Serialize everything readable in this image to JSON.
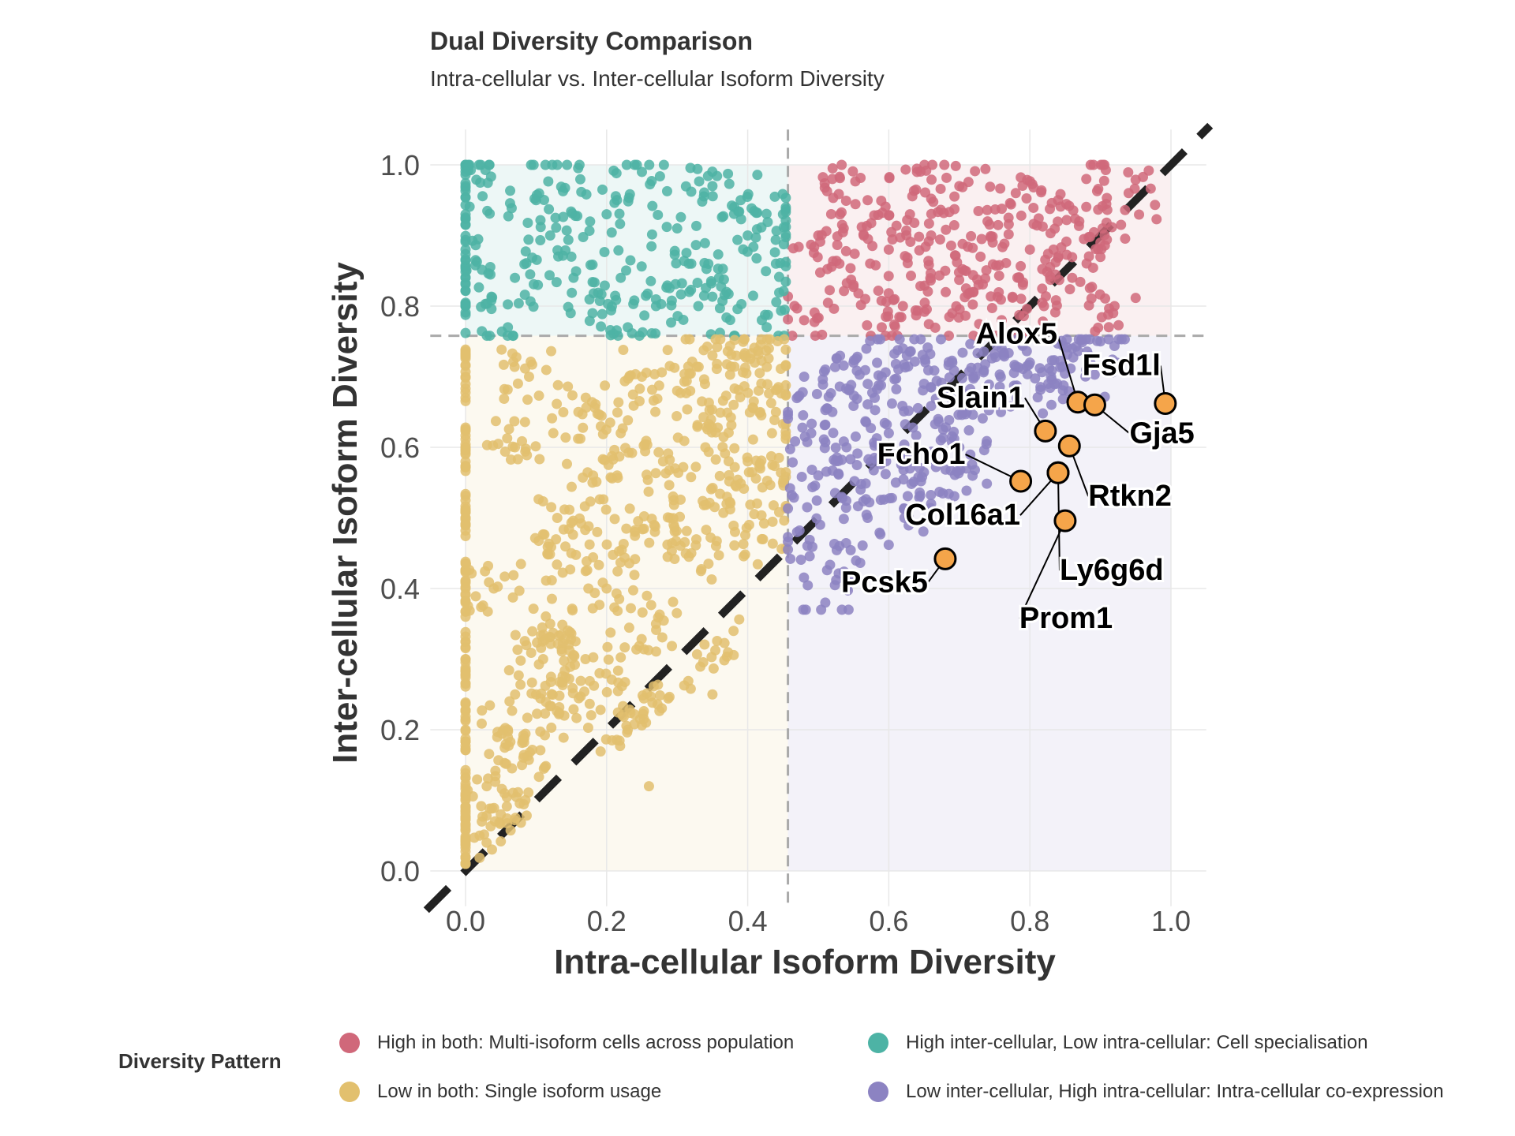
{
  "chart_data": {
    "type": "scatter",
    "title": "Dual Diversity Comparison",
    "subtitle": "Intra-cellular vs. Inter-cellular Isoform Diversity",
    "xlabel": "Intra-cellular Isoform Diversity",
    "ylabel": "Inter-cellular Isoform Diversity",
    "xlim": [
      -0.05,
      1.05
    ],
    "ylim": [
      -0.05,
      1.05
    ],
    "x_ticks": [
      "0.0",
      "0.2",
      "0.4",
      "0.6",
      "0.8",
      "1.0"
    ],
    "y_ticks": [
      "0.0",
      "0.2",
      "0.4",
      "0.6",
      "0.8",
      "1.0"
    ],
    "grid": true,
    "thresholds": {
      "x": 0.457,
      "y": 0.758
    },
    "diagonal_reference": "y = x",
    "legend_title": "Diversity Pattern",
    "legend_position": "bottom",
    "series": [
      {
        "name": "High in both: Multi-isoform cells across population",
        "color": "#D0687A",
        "points": [
          [
            0.48,
            0.78
          ],
          [
            0.5,
            0.9
          ],
          [
            0.52,
            0.98
          ],
          [
            0.55,
            0.83
          ],
          [
            0.57,
            0.95
          ],
          [
            0.6,
            0.88
          ],
          [
            0.62,
            0.8
          ],
          [
            0.64,
            0.99
          ],
          [
            0.66,
            0.9
          ],
          [
            0.68,
            0.85
          ],
          [
            0.7,
            0.97
          ],
          [
            0.72,
            0.82
          ],
          [
            0.74,
            0.92
          ],
          [
            0.76,
            0.78
          ],
          [
            0.78,
            0.96
          ],
          [
            0.8,
            0.88
          ],
          [
            0.82,
            0.8
          ],
          [
            0.84,
            0.95
          ],
          [
            0.86,
            0.84
          ],
          [
            0.88,
            0.98
          ],
          [
            0.9,
            0.89
          ],
          [
            0.92,
            0.8
          ],
          [
            0.94,
            0.96
          ],
          [
            0.59,
            0.77
          ],
          [
            0.69,
            0.79
          ],
          [
            0.79,
            0.83
          ],
          [
            0.87,
            0.92
          ],
          [
            0.53,
            0.86
          ],
          [
            0.63,
            0.93
          ],
          [
            0.73,
            0.87
          ]
        ]
      },
      {
        "name": "High inter-cellular, Low intra-cellular: Cell specialisation",
        "color": "#4DB3A5",
        "points": [
          [
            0.0,
            1.0
          ],
          [
            0.0,
            0.97
          ],
          [
            0.0,
            0.93
          ],
          [
            0.0,
            0.88
          ],
          [
            0.0,
            0.84
          ],
          [
            0.0,
            0.8
          ],
          [
            0.07,
            0.84
          ],
          [
            0.1,
            0.95
          ],
          [
            0.13,
            1.0
          ],
          [
            0.15,
            0.87
          ],
          [
            0.18,
            0.79
          ],
          [
            0.2,
            0.93
          ],
          [
            0.22,
            0.84
          ],
          [
            0.25,
            0.99
          ],
          [
            0.27,
            0.8
          ],
          [
            0.3,
            0.91
          ],
          [
            0.32,
            0.86
          ],
          [
            0.35,
            0.97
          ],
          [
            0.37,
            0.82
          ],
          [
            0.4,
            0.9
          ],
          [
            0.42,
            0.78
          ],
          [
            0.44,
            0.86
          ],
          [
            0.45,
            0.93
          ],
          [
            0.06,
            0.77
          ],
          [
            0.23,
            0.77
          ],
          [
            0.33,
            0.8
          ],
          [
            0.39,
            0.95
          ],
          [
            0.12,
            0.9
          ]
        ]
      },
      {
        "name": "Low in both: Single isoform usage",
        "color": "#E2C06E",
        "points": [
          [
            0.0,
            0.02
          ],
          [
            0.0,
            0.1
          ],
          [
            0.0,
            0.2
          ],
          [
            0.0,
            0.3
          ],
          [
            0.0,
            0.4
          ],
          [
            0.0,
            0.5
          ],
          [
            0.0,
            0.6
          ],
          [
            0.0,
            0.7
          ],
          [
            0.02,
            0.05
          ],
          [
            0.03,
            0.12
          ],
          [
            0.05,
            0.08
          ],
          [
            0.06,
            0.2
          ],
          [
            0.08,
            0.15
          ],
          [
            0.1,
            0.25
          ],
          [
            0.12,
            0.35
          ],
          [
            0.14,
            0.22
          ],
          [
            0.15,
            0.45
          ],
          [
            0.17,
            0.3
          ],
          [
            0.18,
            0.55
          ],
          [
            0.2,
            0.4
          ],
          [
            0.22,
            0.62
          ],
          [
            0.24,
            0.48
          ],
          [
            0.25,
            0.7
          ],
          [
            0.27,
            0.35
          ],
          [
            0.28,
            0.58
          ],
          [
            0.3,
            0.68
          ],
          [
            0.32,
            0.45
          ],
          [
            0.34,
            0.6
          ],
          [
            0.35,
            0.73
          ],
          [
            0.37,
            0.52
          ],
          [
            0.38,
            0.66
          ],
          [
            0.4,
            0.58
          ],
          [
            0.41,
            0.72
          ],
          [
            0.42,
            0.47
          ],
          [
            0.44,
            0.65
          ],
          [
            0.45,
            0.55
          ],
          [
            0.04,
            0.4
          ],
          [
            0.07,
            0.6
          ],
          [
            0.09,
            0.7
          ],
          [
            0.13,
            0.5
          ],
          [
            0.16,
            0.65
          ],
          [
            0.19,
            0.28
          ],
          [
            0.23,
            0.2
          ],
          [
            0.26,
            0.12
          ],
          [
            0.35,
            0.25
          ],
          [
            0.43,
            0.74
          ],
          [
            0.11,
            0.3
          ],
          [
            0.29,
            0.5
          ]
        ]
      },
      {
        "name": "Low inter-cellular, High intra-cellular: Intra-cellular co-expression",
        "color": "#8C83C2",
        "points": [
          [
            0.47,
            0.48
          ],
          [
            0.48,
            0.7
          ],
          [
            0.5,
            0.56
          ],
          [
            0.51,
            0.38
          ],
          [
            0.52,
            0.65
          ],
          [
            0.54,
            0.6
          ],
          [
            0.55,
            0.72
          ],
          [
            0.57,
            0.5
          ],
          [
            0.58,
            0.67
          ],
          [
            0.6,
            0.62
          ],
          [
            0.62,
            0.74
          ],
          [
            0.63,
            0.57
          ],
          [
            0.65,
            0.69
          ],
          [
            0.67,
            0.64
          ],
          [
            0.69,
            0.72
          ],
          [
            0.7,
            0.6
          ],
          [
            0.72,
            0.7
          ],
          [
            0.74,
            0.66
          ],
          [
            0.76,
            0.74
          ],
          [
            0.78,
            0.68
          ],
          [
            0.8,
            0.72
          ],
          [
            0.83,
            0.7
          ],
          [
            0.86,
            0.74
          ],
          [
            0.88,
            0.71
          ],
          [
            0.9,
            0.75
          ],
          [
            0.53,
            0.46
          ],
          [
            0.56,
            0.54
          ],
          [
            0.61,
            0.55
          ],
          [
            0.66,
            0.52
          ],
          [
            0.71,
            0.57
          ],
          [
            0.49,
            0.62
          ],
          [
            0.59,
            0.7
          ]
        ]
      }
    ],
    "highlighted": {
      "color": "#F5A54A",
      "points": [
        {
          "label": "Alox5",
          "x": 0.868,
          "y": 0.664
        },
        {
          "label": "Fsd1l",
          "x": 0.992,
          "y": 0.662
        },
        {
          "label": "Gja5",
          "x": 0.892,
          "y": 0.66
        },
        {
          "label": "Slain1",
          "x": 0.822,
          "y": 0.623
        },
        {
          "label": "Rtkn2",
          "x": 0.856,
          "y": 0.602
        },
        {
          "label": "Fcho1",
          "x": 0.787,
          "y": 0.552
        },
        {
          "label": "Ly6g6d",
          "x": 0.84,
          "y": 0.564
        },
        {
          "label": "Col16a1",
          "x": 0.84,
          "y": 0.564
        },
        {
          "label": "Prom1",
          "x": 0.85,
          "y": 0.496
        },
        {
          "label": "Pcsk5",
          "x": 0.68,
          "y": 0.442
        }
      ]
    }
  }
}
